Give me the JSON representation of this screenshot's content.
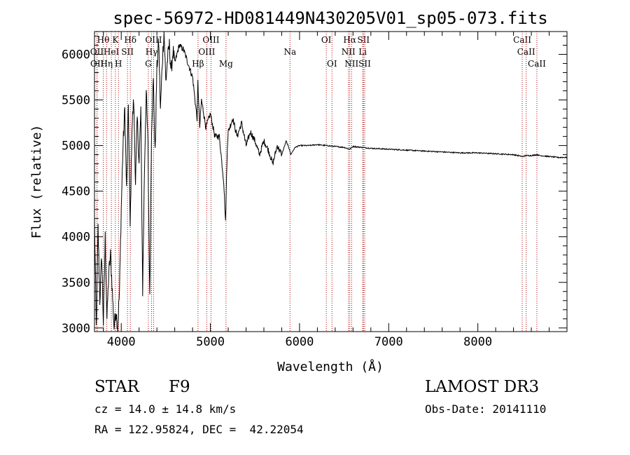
{
  "chart_data": {
    "type": "line",
    "title": "spec-56972-HD081449N430205V01_sp05-073.fits",
    "xlabel": "Wavelength (Å)",
    "ylabel": "Flux (relative)",
    "xlim": [
      3700,
      9000
    ],
    "ylim": [
      2960,
      6250
    ],
    "xticks": [
      4000,
      5000,
      6000,
      7000,
      8000
    ],
    "yticks": [
      3000,
      3500,
      4000,
      4500,
      5000,
      5500,
      6000
    ],
    "series": [
      {
        "name": "spectrum",
        "x": [
          3700,
          3720,
          3740,
          3760,
          3780,
          3800,
          3820,
          3840,
          3860,
          3880,
          3900,
          3920,
          3940,
          3960,
          3980,
          4000,
          4020,
          4040,
          4060,
          4080,
          4100,
          4120,
          4140,
          4160,
          4180,
          4200,
          4220,
          4240,
          4260,
          4280,
          4300,
          4320,
          4340,
          4360,
          4380,
          4400,
          4420,
          4440,
          4460,
          4480,
          4500,
          4520,
          4540,
          4560,
          4580,
          4600,
          4650,
          4700,
          4750,
          4800,
          4850,
          4860,
          4880,
          4900,
          4950,
          5000,
          5050,
          5100,
          5150,
          5170,
          5190,
          5200,
          5250,
          5300,
          5350,
          5400,
          5450,
          5500,
          5550,
          5600,
          5650,
          5700,
          5750,
          5800,
          5850,
          5890,
          5900,
          5950,
          6000,
          6100,
          6200,
          6300,
          6400,
          6500,
          6563,
          6600,
          6700,
          6800,
          7000,
          7200,
          7400,
          7600,
          7800,
          8000,
          8200,
          8400,
          8500,
          8542,
          8600,
          8662,
          8700,
          8800,
          8900,
          9000
        ],
        "y": [
          4200,
          3000,
          4100,
          3300,
          3800,
          3050,
          4000,
          3100,
          3600,
          3800,
          3400,
          3000,
          3200,
          3000,
          3400,
          4300,
          5000,
          5400,
          4500,
          5450,
          4100,
          5200,
          5500,
          4600,
          5300,
          4800,
          5400,
          3400,
          4700,
          5600,
          5000,
          3300,
          5200,
          5700,
          4900,
          5850,
          6150,
          5400,
          5900,
          6250,
          5700,
          5950,
          6100,
          5800,
          6050,
          5900,
          6100,
          6050,
          5900,
          5750,
          5300,
          5700,
          5200,
          5500,
          5200,
          5350,
          5100,
          5100,
          4600,
          4150,
          5000,
          5150,
          5300,
          5100,
          5250,
          5000,
          5150,
          5050,
          4900,
          5050,
          4950,
          4800,
          5000,
          4900,
          5050,
          4950,
          4900,
          4980,
          5000,
          5000,
          5010,
          5000,
          4990,
          4980,
          4960,
          4990,
          4980,
          4970,
          4960,
          4950,
          4940,
          4930,
          4920,
          4920,
          4910,
          4900,
          4880,
          4890,
          4890,
          4900,
          4890,
          4880,
          4870,
          4870
        ]
      }
    ],
    "lines": [
      {
        "label": "Hθ",
        "wavelength": 3798,
        "row": 1
      },
      {
        "label": "OII",
        "wavelength": 3727,
        "row": 2
      },
      {
        "label": "OII",
        "wavelength": 3729,
        "row": 3
      },
      {
        "label": "HeI",
        "wavelength": 3889,
        "row": 2
      },
      {
        "label": "Hη",
        "wavelength": 3835,
        "row": 3
      },
      {
        "label": "K",
        "wavelength": 3934,
        "row": 1
      },
      {
        "label": "SII",
        "wavelength": 4070,
        "row": 2
      },
      {
        "label": "H",
        "wavelength": 3969,
        "row": 3
      },
      {
        "label": "Hδ",
        "wavelength": 4102,
        "row": 1
      },
      {
        "label": "OIII",
        "wavelength": 4363,
        "row": 1
      },
      {
        "label": "Hγ",
        "wavelength": 4340,
        "row": 2
      },
      {
        "label": "G",
        "wavelength": 4304,
        "row": 3
      },
      {
        "label": "OIII",
        "wavelength": 5007,
        "row": 1
      },
      {
        "label": "OIII",
        "wavelength": 4959,
        "row": 2
      },
      {
        "label": "Hβ",
        "wavelength": 4861,
        "row": 3
      },
      {
        "label": "Mg",
        "wavelength": 5175,
        "row": 3
      },
      {
        "label": "Na",
        "wavelength": 5893,
        "row": 2
      },
      {
        "label": "OI",
        "wavelength": 6300,
        "row": 1
      },
      {
        "label": "OI",
        "wavelength": 6364,
        "row": 3
      },
      {
        "label": "Hα",
        "wavelength": 6563,
        "row": 1
      },
      {
        "label": "SII",
        "wavelength": 6717,
        "row": 1
      },
      {
        "label": "NII",
        "wavelength": 6548,
        "row": 2
      },
      {
        "label": "Li",
        "wavelength": 6708,
        "row": 2
      },
      {
        "label": "NII",
        "wavelength": 6584,
        "row": 3
      },
      {
        "label": "SII",
        "wavelength": 6731,
        "row": 3
      },
      {
        "label": "CaII",
        "wavelength": 8498,
        "row": 1
      },
      {
        "label": "CaII",
        "wavelength": 8542,
        "row": 2
      },
      {
        "label": "CaII",
        "wavelength": 8662,
        "row": 3
      }
    ]
  },
  "info": {
    "class": "STAR",
    "subclass": "F9",
    "survey": "LAMOST DR3",
    "cz": "cz = 14.0 ± 14.8 km/s",
    "obs_date": "Obs-Date: 20141110",
    "coords": "RA = 122.95824, DEC =  42.22054"
  }
}
